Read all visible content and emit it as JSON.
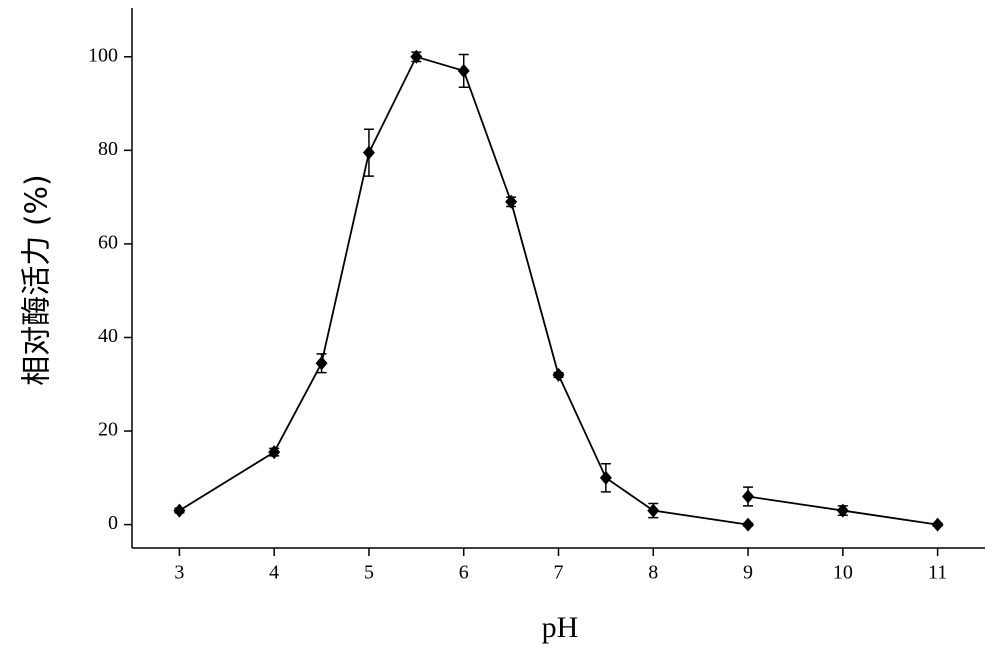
{
  "chart_data": {
    "type": "line",
    "x_label": "pH",
    "y_label": "相对酶活力 (%)",
    "x": [
      3,
      4,
      4.5,
      5,
      5.5,
      6,
      6.5,
      7,
      7.5,
      8,
      9,
      9,
      9,
      10,
      11
    ],
    "series": [
      {
        "color": "#000000",
        "values": [
          3,
          15.5,
          34.5,
          79.5,
          100,
          97,
          69,
          32,
          10,
          3,
          0,
          null,
          6,
          3,
          0
        ],
        "errors": [
          0.5,
          0.8,
          2,
          5,
          1,
          3.5,
          1,
          0.5,
          3,
          1.5,
          0.3,
          null,
          2,
          1,
          0.3
        ]
      }
    ],
    "xlim": [
      2.5,
      11.5
    ],
    "xticks": [
      3,
      4,
      5,
      6,
      7,
      8,
      9,
      10,
      11
    ],
    "ylim": [
      -5,
      110
    ],
    "yticks": [
      0,
      20,
      40,
      60,
      80,
      100
    ]
  }
}
